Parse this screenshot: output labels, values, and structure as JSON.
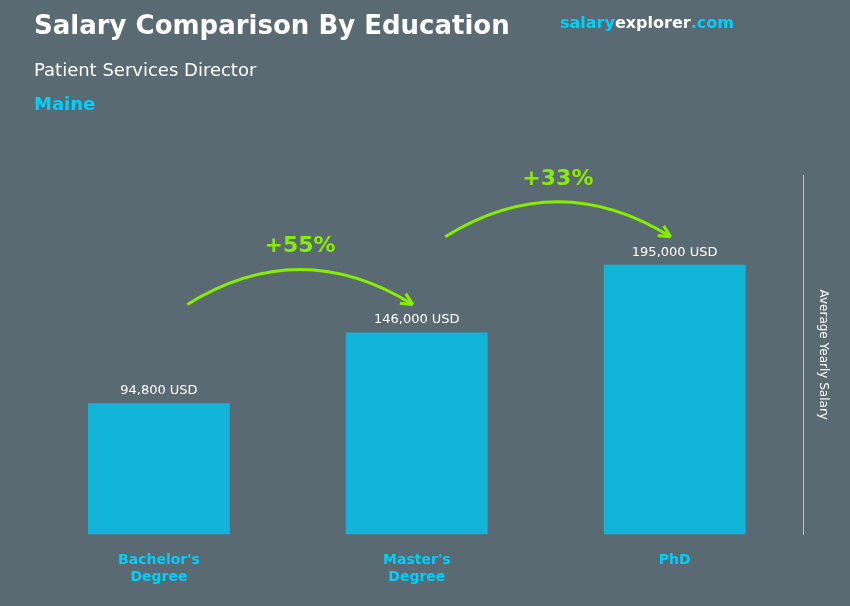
{
  "chart_data": {
    "type": "bar",
    "title": "Salary Comparison By Education",
    "subtitle": "Patient Services Director",
    "location": "Maine",
    "watermark": [
      "salary",
      "explorer",
      ".com"
    ],
    "ylabel": "Average Yearly Salary",
    "categories": [
      "Bachelor's\nDegree",
      "Master's\nDegree",
      "PhD"
    ],
    "values": [
      94800,
      146000,
      195000
    ],
    "value_labels": [
      "94,800 USD",
      "146,000 USD",
      "195,000 USD"
    ],
    "data_labels": true,
    "annotations": [
      "+55%",
      "+33%"
    ],
    "color": "#00C8F0",
    "ylim": [
      0,
      260000
    ],
    "yticks": [],
    "tick_labels": "x",
    "grid": false,
    "legend": false
  }
}
